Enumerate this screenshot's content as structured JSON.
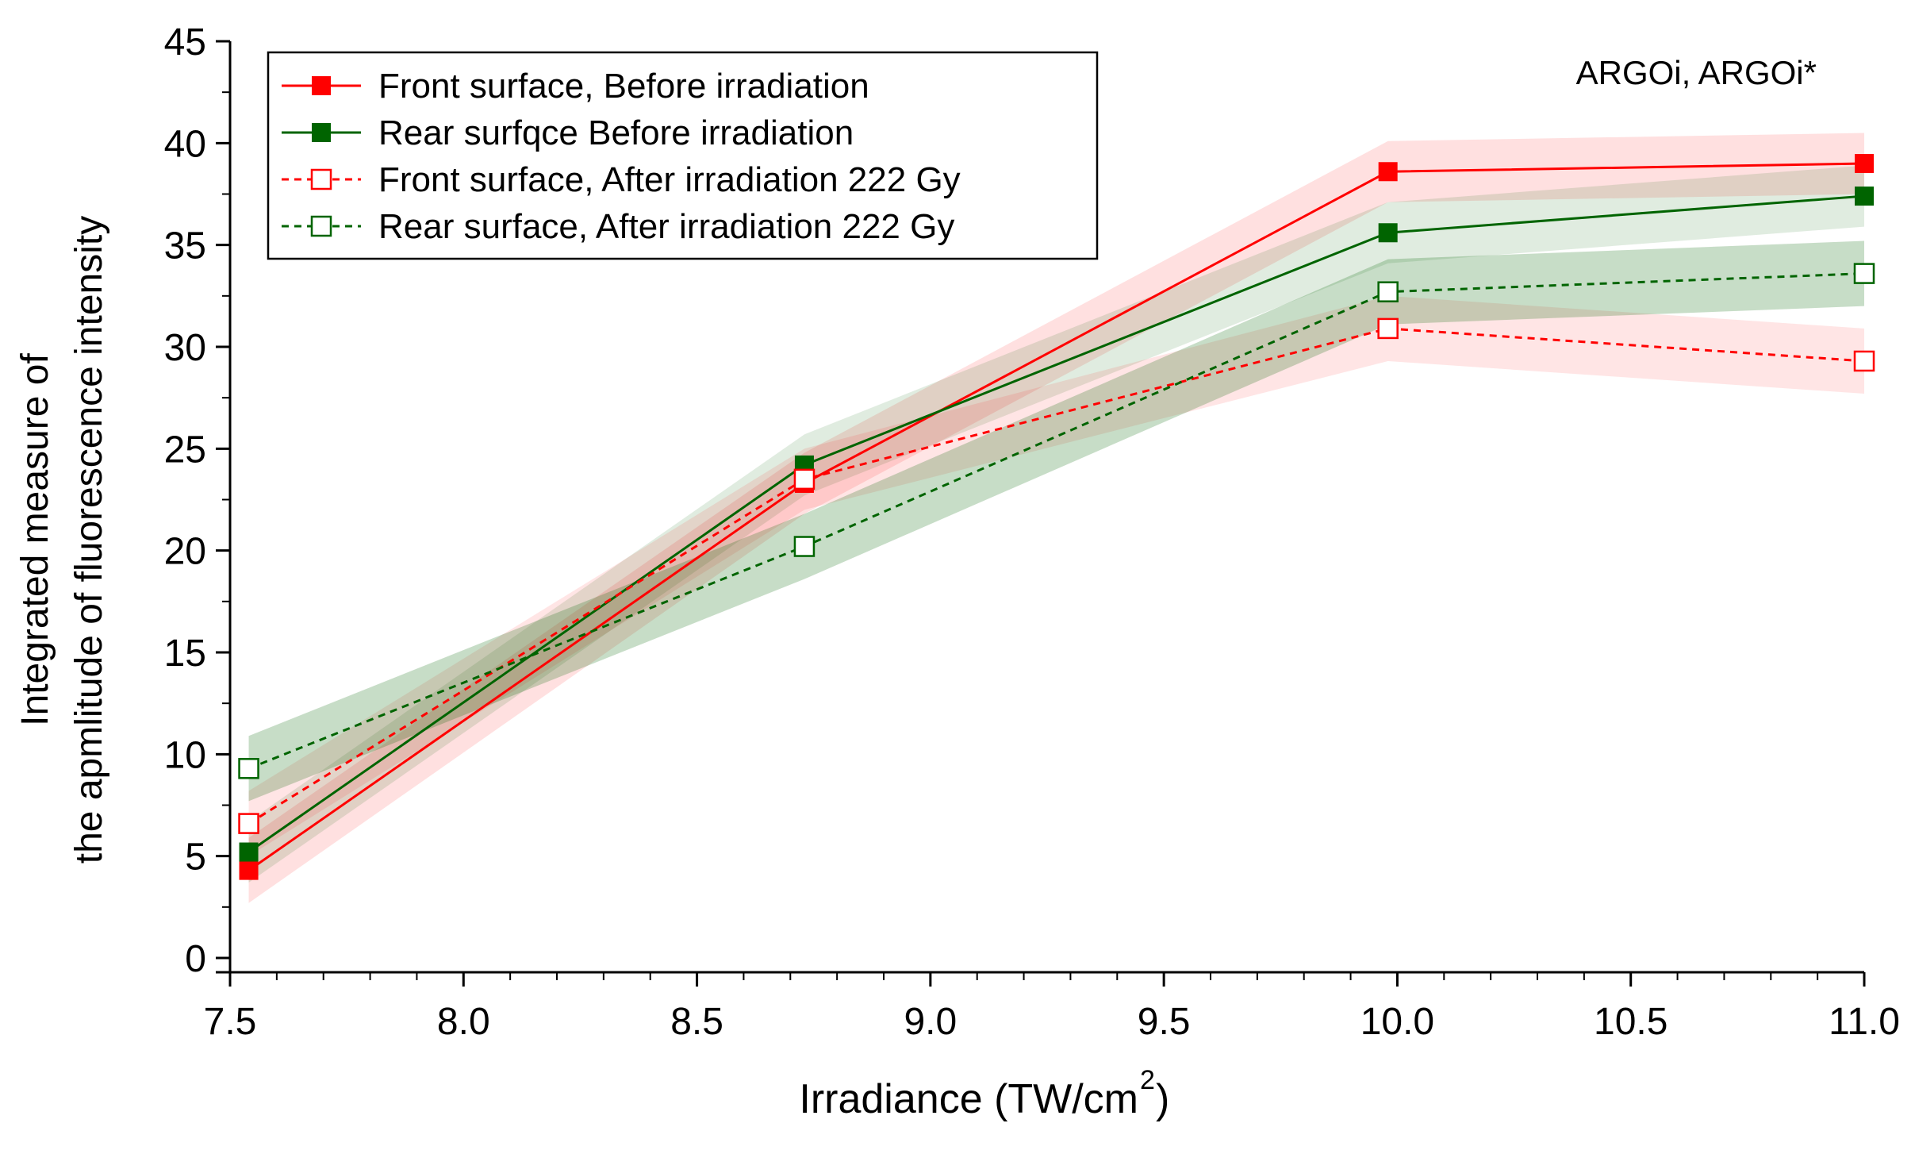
{
  "chart_data": {
    "type": "line",
    "annotation": "ARGOi, ARGOi*",
    "xlabel": "Irradiance (TW/cm",
    "xlabel_sup": "2",
    "xlabel_close": ")",
    "ylabel_line1": "Integrated measure of",
    "ylabel_line2": "the apmlitude of fluorescence intensity",
    "xlim": [
      7.5,
      11.0
    ],
    "ylim": [
      0,
      45
    ],
    "x_ticks": [
      7.5,
      8.0,
      8.5,
      9.0,
      9.5,
      10.0,
      10.5,
      11.0
    ],
    "x_tick_labels": [
      "7.5",
      "8.0",
      "8.5",
      "9.0",
      "9.5",
      "10.0",
      "10.5",
      "11.0"
    ],
    "y_ticks": [
      0,
      5,
      10,
      15,
      20,
      25,
      30,
      35,
      40,
      45
    ],
    "y_tick_labels": [
      "0",
      "5",
      "10",
      "15",
      "20",
      "25",
      "30",
      "35",
      "40",
      "45"
    ],
    "grid": false,
    "legend_position": "top-left",
    "x": [
      7.54,
      8.73,
      9.98,
      11.0
    ],
    "series": [
      {
        "name": "Front surface, Before irradiation",
        "values": [
          4.3,
          23.3,
          38.6,
          39.0
        ],
        "band_low": [
          2.7,
          21.8,
          37.1,
          37.5
        ],
        "band_high": [
          5.9,
          24.8,
          40.1,
          40.5
        ],
        "color": "#ff0000",
        "dashed": false,
        "filled_marker": true
      },
      {
        "name": "Rear surfqce Before irradiation",
        "values": [
          5.2,
          24.2,
          35.6,
          37.4
        ],
        "band_low": [
          3.7,
          22.7,
          34.1,
          35.9
        ],
        "band_high": [
          6.7,
          25.7,
          37.1,
          38.9
        ],
        "color": "#006400",
        "dashed": false,
        "filled_marker": true
      },
      {
        "name": "Front surface, After irradiation 222 Gy",
        "values": [
          6.6,
          23.5,
          30.9,
          29.3
        ],
        "band_low": [
          5.0,
          22.0,
          29.3,
          27.7
        ],
        "band_high": [
          8.2,
          25.0,
          32.5,
          30.9
        ],
        "color": "#ff0000",
        "dashed": true,
        "filled_marker": false
      },
      {
        "name": "Rear surface, After irradiation 222 Gy",
        "values": [
          9.3,
          20.2,
          32.7,
          33.6
        ],
        "band_low": [
          7.7,
          18.6,
          31.1,
          32.0
        ],
        "band_high": [
          10.9,
          21.8,
          34.3,
          35.2
        ],
        "color": "#006400",
        "dashed": true,
        "filled_marker": false
      }
    ]
  }
}
